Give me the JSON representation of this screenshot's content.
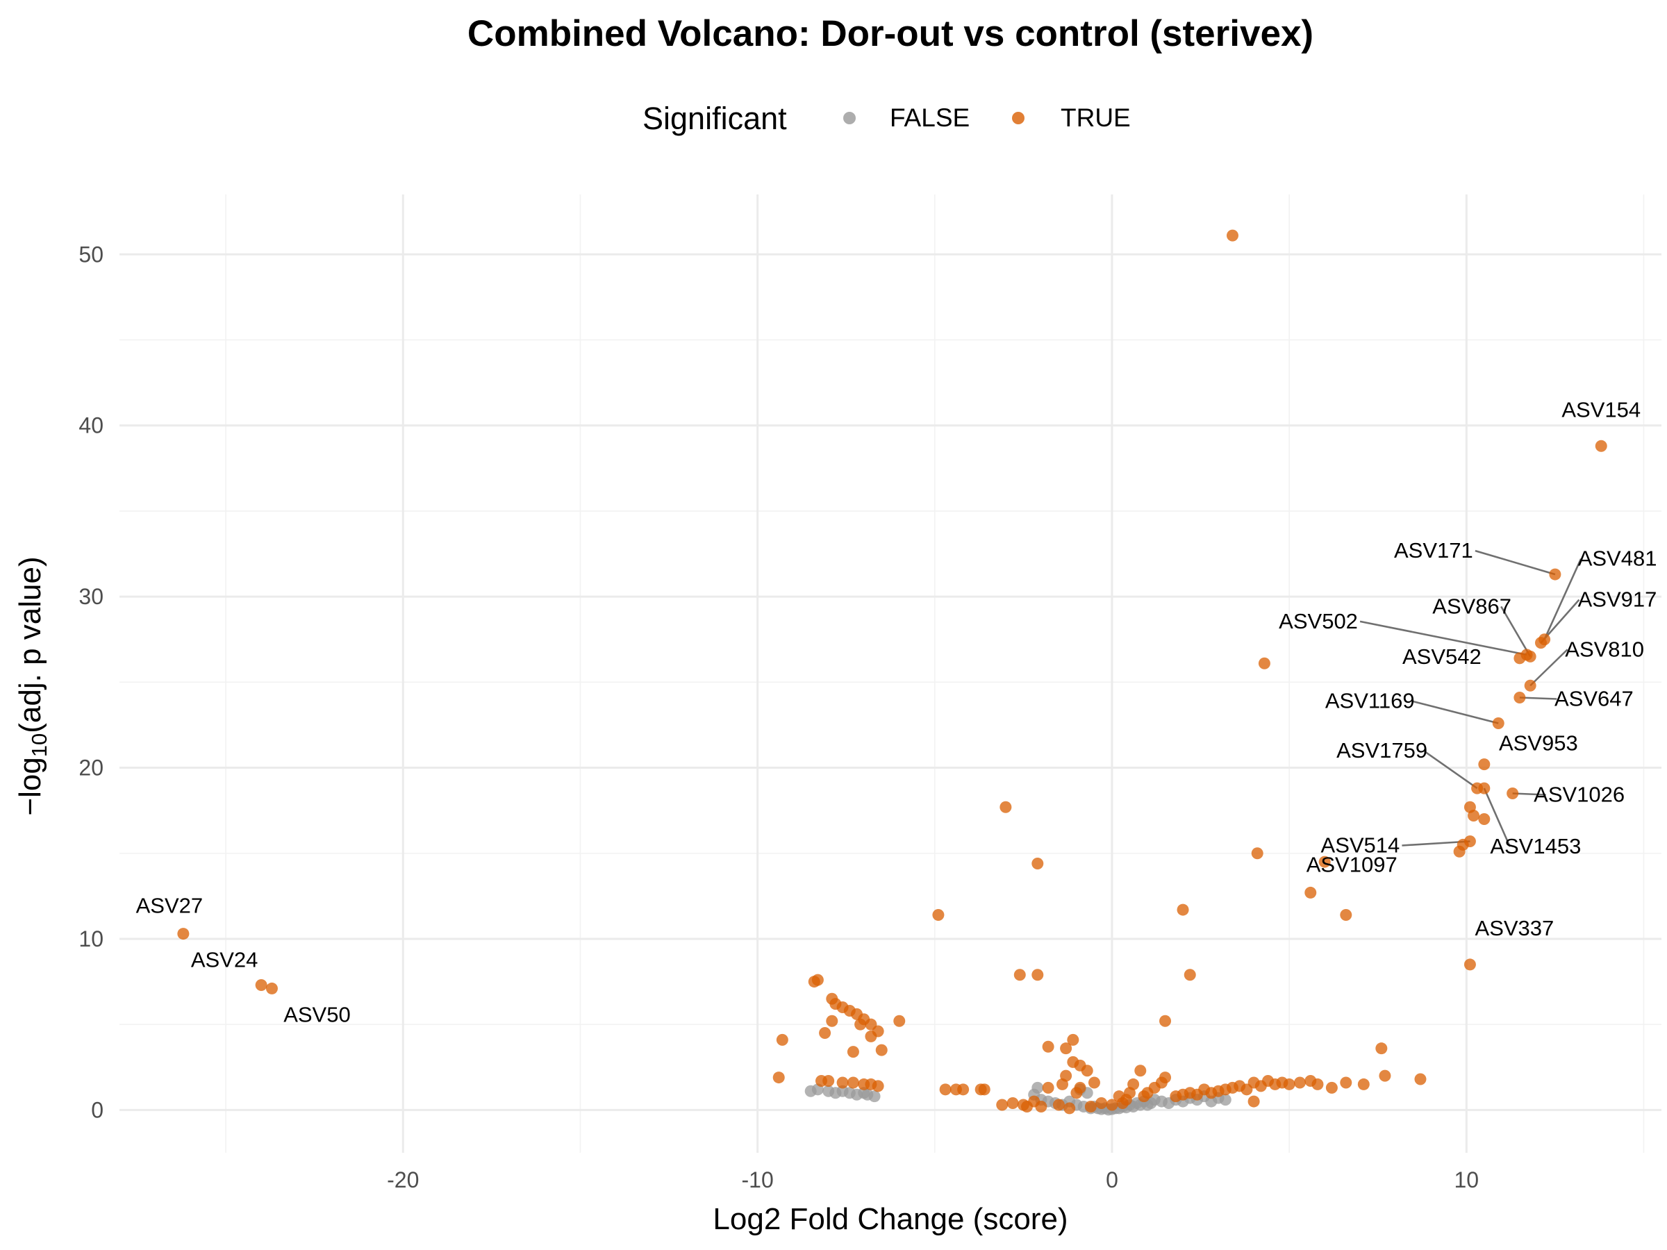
{
  "chart_data": {
    "type": "scatter",
    "title": "Combined Volcano: Dor-out vs control (sterivex)",
    "xlabel": "Log2 Fold Change (score)",
    "ylabel": "−log10(adj. p value)",
    "xlim": [
      -28,
      15.5
    ],
    "ylim": [
      -2.5,
      53.5
    ],
    "x_ticks": [
      -20,
      -10,
      0,
      10
    ],
    "y_ticks": [
      0,
      10,
      20,
      30,
      40,
      50
    ],
    "grid": true,
    "legend": {
      "title": "Significant",
      "position": "top",
      "entries": [
        {
          "label": "FALSE",
          "color": "#999999"
        },
        {
          "label": "TRUE",
          "color": "#d95f02"
        }
      ]
    },
    "series": [
      {
        "name": "FALSE",
        "color": "#999999",
        "points": [
          [
            -8.5,
            1.1
          ],
          [
            -8.3,
            1.2
          ],
          [
            -8.0,
            1.1
          ],
          [
            -7.8,
            1.0
          ],
          [
            -7.6,
            1.1
          ],
          [
            -7.4,
            1.0
          ],
          [
            -7.2,
            0.9
          ],
          [
            -7.0,
            1.0
          ],
          [
            -6.9,
            0.9
          ],
          [
            -6.7,
            0.8
          ],
          [
            -2.1,
            1.3
          ],
          [
            -2.2,
            0.9
          ],
          [
            -2.0,
            0.6
          ],
          [
            -1.8,
            0.5
          ],
          [
            -1.6,
            0.4
          ],
          [
            -1.4,
            0.3
          ],
          [
            -1.2,
            0.5
          ],
          [
            -1.0,
            0.3
          ],
          [
            -0.9,
            1.2
          ],
          [
            -0.8,
            0.2
          ],
          [
            -0.7,
            1.0
          ],
          [
            -0.6,
            0.1
          ],
          [
            -0.5,
            0.2
          ],
          [
            -0.4,
            0.1
          ],
          [
            -0.3,
            0.05
          ],
          [
            -0.2,
            0.1
          ],
          [
            -0.1,
            0.02
          ],
          [
            0.0,
            0.05
          ],
          [
            0.1,
            0.1
          ],
          [
            0.2,
            0.1
          ],
          [
            0.3,
            0.2
          ],
          [
            0.4,
            0.15
          ],
          [
            0.5,
            0.3
          ],
          [
            0.6,
            0.2
          ],
          [
            0.7,
            0.4
          ],
          [
            0.8,
            0.3
          ],
          [
            0.9,
            0.5
          ],
          [
            1.0,
            0.3
          ],
          [
            1.1,
            0.4
          ],
          [
            1.2,
            0.6
          ],
          [
            1.4,
            0.5
          ],
          [
            1.6,
            0.4
          ],
          [
            1.8,
            0.6
          ],
          [
            2.0,
            0.5
          ],
          [
            2.2,
            0.7
          ],
          [
            2.4,
            0.6
          ],
          [
            2.6,
            0.8
          ],
          [
            2.8,
            0.5
          ],
          [
            3.0,
            0.7
          ],
          [
            3.2,
            0.6
          ]
        ]
      },
      {
        "name": "TRUE",
        "color": "#d95f02",
        "points": [
          [
            3.4,
            51.1
          ],
          [
            13.8,
            38.8
          ],
          [
            12.5,
            31.3
          ],
          [
            12.2,
            27.5
          ],
          [
            12.1,
            27.3
          ],
          [
            11.7,
            26.6
          ],
          [
            11.8,
            26.5
          ],
          [
            4.3,
            26.1
          ],
          [
            11.5,
            26.4
          ],
          [
            11.8,
            24.8
          ],
          [
            11.5,
            24.1
          ],
          [
            10.9,
            22.6
          ],
          [
            10.5,
            20.2
          ],
          [
            10.3,
            18.8
          ],
          [
            10.5,
            18.8
          ],
          [
            11.3,
            18.5
          ],
          [
            -3.0,
            17.7
          ],
          [
            10.1,
            17.7
          ],
          [
            10.2,
            17.2
          ],
          [
            10.5,
            17.0
          ],
          [
            10.1,
            15.7
          ],
          [
            9.9,
            15.5
          ],
          [
            9.8,
            15.1
          ],
          [
            4.1,
            15.0
          ],
          [
            6.0,
            14.5
          ],
          [
            -2.1,
            14.4
          ],
          [
            5.6,
            12.7
          ],
          [
            2.0,
            11.7
          ],
          [
            -4.9,
            11.4
          ],
          [
            6.6,
            11.4
          ],
          [
            -26.2,
            10.3
          ],
          [
            -24.0,
            7.3
          ],
          [
            -23.7,
            7.1
          ],
          [
            10.1,
            8.5
          ],
          [
            -8.4,
            7.5
          ],
          [
            -8.3,
            7.6
          ],
          [
            -2.6,
            7.9
          ],
          [
            -2.1,
            7.9
          ],
          [
            2.2,
            7.9
          ],
          [
            -7.9,
            6.5
          ],
          [
            -7.8,
            6.2
          ],
          [
            -7.6,
            6.0
          ],
          [
            -7.4,
            5.8
          ],
          [
            -7.2,
            5.6
          ],
          [
            -7.0,
            5.3
          ],
          [
            -6.8,
            5.0
          ],
          [
            -6.6,
            4.6
          ],
          [
            -6.8,
            4.3
          ],
          [
            -6.5,
            3.5
          ],
          [
            -7.9,
            5.2
          ],
          [
            -7.1,
            5.0
          ],
          [
            -6.0,
            5.2
          ],
          [
            -9.3,
            4.1
          ],
          [
            -8.1,
            4.5
          ],
          [
            -7.3,
            3.4
          ],
          [
            1.5,
            5.2
          ],
          [
            -1.8,
            3.7
          ],
          [
            -1.3,
            3.6
          ],
          [
            -1.1,
            4.1
          ],
          [
            -1.1,
            2.8
          ],
          [
            -0.9,
            2.6
          ],
          [
            -0.7,
            2.3
          ],
          [
            7.6,
            3.6
          ],
          [
            -1.3,
            2.0
          ],
          [
            -9.4,
            1.9
          ],
          [
            -8.2,
            1.7
          ],
          [
            -8.0,
            1.7
          ],
          [
            -7.6,
            1.6
          ],
          [
            -7.3,
            1.6
          ],
          [
            -7.0,
            1.5
          ],
          [
            -6.8,
            1.5
          ],
          [
            -6.6,
            1.4
          ],
          [
            -4.7,
            1.2
          ],
          [
            -4.4,
            1.2
          ],
          [
            -4.2,
            1.2
          ],
          [
            -3.7,
            1.2
          ],
          [
            -3.6,
            1.2
          ],
          [
            7.7,
            2.0
          ],
          [
            8.7,
            1.8
          ],
          [
            7.1,
            1.5
          ],
          [
            6.6,
            1.6
          ],
          [
            6.2,
            1.3
          ],
          [
            5.8,
            1.5
          ],
          [
            5.6,
            1.7
          ],
          [
            5.3,
            1.6
          ],
          [
            5.0,
            1.5
          ],
          [
            4.8,
            1.6
          ],
          [
            4.6,
            1.5
          ],
          [
            4.4,
            1.7
          ],
          [
            4.2,
            1.4
          ],
          [
            4.0,
            1.6
          ],
          [
            3.8,
            1.2
          ],
          [
            3.6,
            1.4
          ],
          [
            3.4,
            1.3
          ],
          [
            3.2,
            1.2
          ],
          [
            3.0,
            1.1
          ],
          [
            2.8,
            1.0
          ],
          [
            2.6,
            1.2
          ],
          [
            2.4,
            0.9
          ],
          [
            2.2,
            1.0
          ],
          [
            2.0,
            0.9
          ],
          [
            1.8,
            0.8
          ],
          [
            1.5,
            1.9
          ],
          [
            1.4,
            1.6
          ],
          [
            1.2,
            1.3
          ],
          [
            1.0,
            1.0
          ],
          [
            0.9,
            0.8
          ],
          [
            0.8,
            2.3
          ],
          [
            0.6,
            1.5
          ],
          [
            0.5,
            1.0
          ],
          [
            0.4,
            0.6
          ],
          [
            0.3,
            0.4
          ],
          [
            -0.3,
            0.4
          ],
          [
            -0.6,
            0.2
          ],
          [
            -1.0,
            1.0
          ],
          [
            -1.5,
            0.3
          ],
          [
            -1.8,
            1.3
          ],
          [
            -2.2,
            0.5
          ],
          [
            -2.5,
            0.3
          ],
          [
            -2.8,
            0.4
          ],
          [
            -3.1,
            0.3
          ],
          [
            -2.0,
            0.2
          ],
          [
            -1.2,
            0.1
          ],
          [
            4.0,
            0.5
          ],
          [
            -2.4,
            0.2
          ],
          [
            -1.4,
            1.5
          ],
          [
            -0.9,
            1.3
          ],
          [
            -0.5,
            1.6
          ],
          [
            0.2,
            0.8
          ],
          [
            0.0,
            0.3
          ]
        ]
      }
    ],
    "annotations": [
      {
        "label": "ASV154",
        "x": 13.8,
        "y": 38.8
      },
      {
        "label": "ASV171",
        "x": 12.5,
        "y": 31.3
      },
      {
        "label": "ASV481",
        "x": 12.2,
        "y": 27.5
      },
      {
        "label": "ASV917",
        "x": 12.1,
        "y": 27.3
      },
      {
        "label": "ASV867",
        "x": 11.8,
        "y": 26.5
      },
      {
        "label": "ASV502",
        "x": 11.7,
        "y": 26.6
      },
      {
        "label": "ASV542",
        "x": 11.5,
        "y": 26.4
      },
      {
        "label": "ASV810",
        "x": 11.8,
        "y": 24.8
      },
      {
        "label": "ASV647",
        "x": 11.5,
        "y": 24.1
      },
      {
        "label": "ASV1169",
        "x": 10.9,
        "y": 22.6
      },
      {
        "label": "ASV953",
        "x": 10.5,
        "y": 20.2
      },
      {
        "label": "ASV1759",
        "x": 10.3,
        "y": 18.8
      },
      {
        "label": "ASV1026",
        "x": 11.3,
        "y": 18.5
      },
      {
        "label": "ASV514",
        "x": 10.1,
        "y": 15.7
      },
      {
        "label": "ASV1453",
        "x": 10.5,
        "y": 18.8
      },
      {
        "label": "ASV1097",
        "x": 9.9,
        "y": 15.5
      },
      {
        "label": "ASV337",
        "x": 10.1,
        "y": 8.5
      },
      {
        "label": "ASV27",
        "x": -26.2,
        "y": 10.3
      },
      {
        "label": "ASV24",
        "x": -24.0,
        "y": 7.3
      },
      {
        "label": "ASV50",
        "x": -23.7,
        "y": 7.1
      }
    ]
  }
}
